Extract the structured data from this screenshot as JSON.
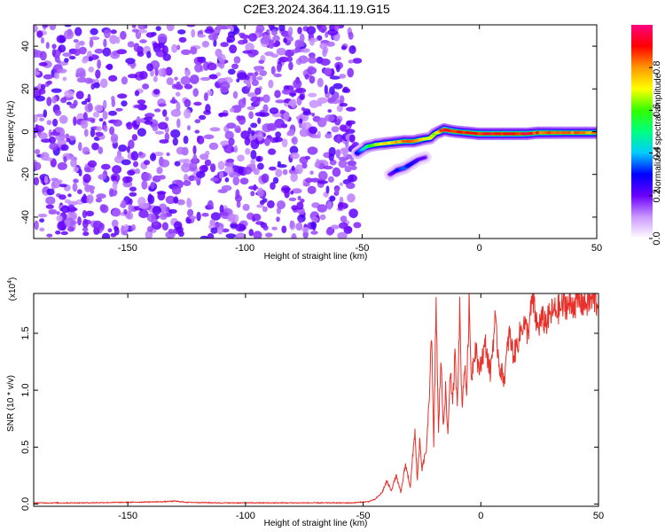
{
  "window": {
    "title": "C2E3.2024.364.11.19.G15"
  },
  "chart_data": [
    {
      "type": "heatmap",
      "xlabel": "Height of straight line (km)",
      "ylabel": "Frequency (Hz)",
      "xlim": [
        -190,
        50
      ],
      "ylim": [
        -50,
        50
      ],
      "xticks": [
        -150,
        -100,
        -50,
        0,
        50
      ],
      "yticks": [
        -40,
        -20,
        0,
        20,
        40
      ],
      "noise_region": {
        "x_from": -190,
        "x_to": -52
      },
      "signal_track": {
        "x": [
          -52,
          -48,
          -44,
          -40,
          -36,
          -32,
          -28,
          -24,
          -21,
          -19,
          -17,
          -15,
          -13,
          -10,
          -5,
          0,
          5,
          10,
          15,
          20,
          25,
          30,
          35,
          40,
          45,
          50
        ],
        "y": [
          -10,
          -7,
          -6,
          -5.5,
          -5,
          -4.5,
          -4.5,
          -3.5,
          -3,
          -1,
          0,
          1,
          0.5,
          0,
          -0.5,
          -1,
          -1,
          -1,
          -1,
          -1,
          -0.5,
          -0.5,
          -0.5,
          -0.5,
          -0.5,
          -0.5
        ],
        "peak_amplitude": [
          0.3,
          0.55,
          0.7,
          0.75,
          0.8,
          0.85,
          0.85,
          0.8,
          0.7,
          0.65,
          0.8,
          0.95,
          0.95,
          0.9,
          0.9,
          0.95,
          0.95,
          0.95,
          0.95,
          0.95,
          0.9,
          0.9,
          0.85,
          0.85,
          0.85,
          0.85
        ]
      },
      "secondary_track": {
        "x": [
          -38,
          -35,
          -32,
          -29,
          -26,
          -23
        ],
        "y": [
          -20,
          -18,
          -17,
          -15,
          -13,
          -12
        ],
        "peak_amplitude": [
          0.2,
          0.3,
          0.35,
          0.3,
          0.25,
          0.2
        ]
      },
      "colorbar": {
        "label": "Normalized spectral amplitude",
        "range": [
          0.0,
          1.0
        ],
        "ticks": [
          0.0,
          0.2,
          0.4,
          0.6,
          0.8
        ],
        "tick_labels": [
          "0.0",
          "0.2",
          "0.4",
          "0.6",
          "0.8"
        ],
        "colors": [
          "#ffffff",
          "#cc99ff",
          "#6a00ff",
          "#0000ff",
          "#00ccff",
          "#00ff80",
          "#33ff00",
          "#ffff00",
          "#ff9900",
          "#ff0000",
          "#ff0080"
        ]
      }
    },
    {
      "type": "line",
      "xlabel": "Height of straight line (km)",
      "ylabel": "SNR (10 * v/v)",
      "y_multiplier_label": "(x10",
      "y_multiplier_exp": "4",
      "y_multiplier_close": ")",
      "xlim": [
        -190,
        50
      ],
      "ylim": [
        -0.02,
        1.85
      ],
      "xticks": [
        -150,
        -100,
        -50,
        0,
        50
      ],
      "yticks": [
        0.0,
        0.5,
        1.0,
        1.5
      ],
      "ytick_labels": [
        "0.0",
        "0.5",
        "1.0",
        "1.5"
      ],
      "color": "#e8312a",
      "series": [
        {
          "x": [
            -190,
            -170,
            -150,
            -135,
            -130,
            -125,
            -110,
            -90,
            -70,
            -55,
            -48,
            -45,
            -42,
            -40,
            -38,
            -36,
            -34,
            -32,
            -30,
            -28,
            -27,
            -26,
            -25,
            -24,
            -23,
            -22,
            -21,
            -20,
            -19,
            -18,
            -17,
            -16,
            -15,
            -14,
            -13,
            -12,
            -11,
            -10,
            -9,
            -8,
            -7,
            -6,
            -5,
            -4,
            -3,
            -2,
            -1,
            0,
            2,
            4,
            6,
            8,
            10,
            12,
            14,
            16,
            18,
            20,
            22,
            24,
            26,
            28,
            30,
            32,
            34,
            36,
            38,
            40,
            42,
            44,
            46,
            48,
            50
          ],
          "y": [
            0.01,
            0.01,
            0.015,
            0.02,
            0.025,
            0.015,
            0.01,
            0.01,
            0.01,
            0.01,
            0.02,
            0.04,
            0.1,
            0.2,
            0.12,
            0.25,
            0.1,
            0.35,
            0.15,
            0.65,
            0.2,
            0.55,
            0.3,
            0.4,
            0.5,
            0.9,
            1.55,
            0.5,
            1.8,
            0.6,
            1.3,
            0.7,
            1.0,
            0.6,
            1.2,
            0.85,
            1.3,
            0.9,
            1.7,
            0.85,
            1.2,
            1.0,
            1.75,
            1.1,
            1.3,
            1.4,
            1.15,
            1.25,
            1.4,
            1.15,
            1.6,
            1.2,
            1.1,
            1.5,
            1.3,
            1.45,
            1.6,
            1.5,
            1.8,
            1.55,
            1.62,
            1.6,
            1.68,
            1.7,
            1.72,
            1.76,
            1.74,
            1.77,
            1.78,
            1.76,
            1.78,
            1.8,
            1.75
          ]
        }
      ]
    }
  ]
}
